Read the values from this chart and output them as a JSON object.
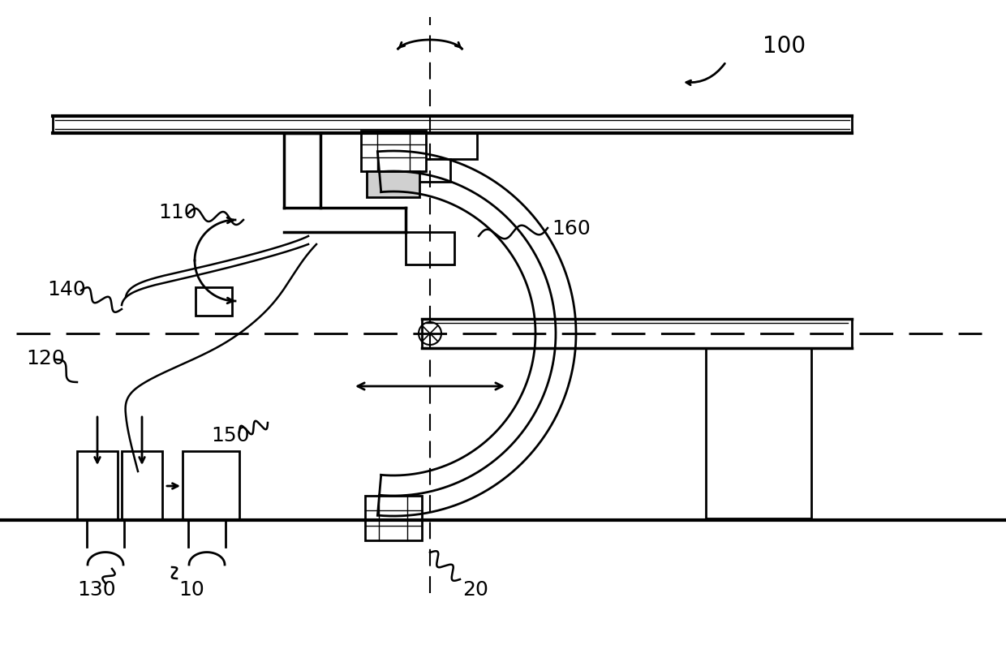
{
  "bg_color": "#ffffff",
  "line_color": "#000000",
  "label_100": "100",
  "label_110": "110",
  "label_120": "120",
  "label_130": "130",
  "label_140": "140",
  "label_150": "150",
  "label_160": "160",
  "label_20": "20",
  "label_10": "10",
  "font_size_labels": 18
}
